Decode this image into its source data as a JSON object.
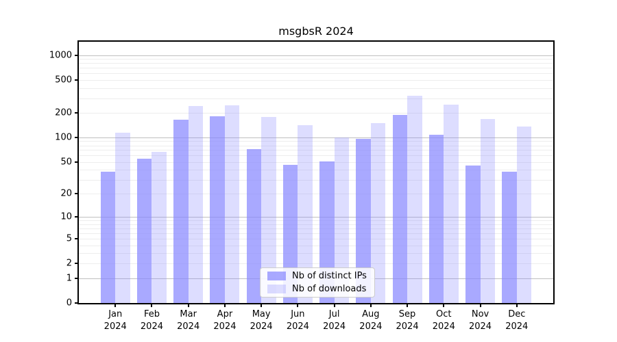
{
  "chart_data": {
    "type": "bar",
    "title": "msgbsR 2024",
    "categories": [
      "Jan 2024",
      "Feb 2024",
      "Mar 2024",
      "Apr 2024",
      "May 2024",
      "Jun 2024",
      "Jul 2024",
      "Aug 2024",
      "Sep 2024",
      "Oct 2024",
      "Nov 2024",
      "Dec 2024"
    ],
    "series": [
      {
        "name": "Nb of distinct IPs",
        "color": "#8888ffb8",
        "values": [
          38,
          55,
          165,
          180,
          72,
          46,
          51,
          96,
          190,
          108,
          45,
          38
        ]
      },
      {
        "name": "Nb of downloads",
        "color": "#8888ff48",
        "values": [
          115,
          67,
          240,
          247,
          178,
          140,
          100,
          150,
          325,
          250,
          168,
          135
        ]
      }
    ],
    "xlabel": "",
    "ylabel": "",
    "yscale": "log1p",
    "ylim": [
      0,
      1455
    ],
    "yticks": [
      0,
      1,
      2,
      5,
      10,
      20,
      50,
      100,
      200,
      500,
      1000
    ],
    "grid": "horizontal; minor lines at 2-9 x 10^k, major lines at powers of 10",
    "legend_position": "lower center",
    "colors": {
      "ips_bar_effective": "#a9a9fa",
      "downloads_bar_effective": "#dedefc",
      "grid_minor": "#ededed",
      "grid_major": "#bfbfbf",
      "axis": "#000000"
    }
  }
}
